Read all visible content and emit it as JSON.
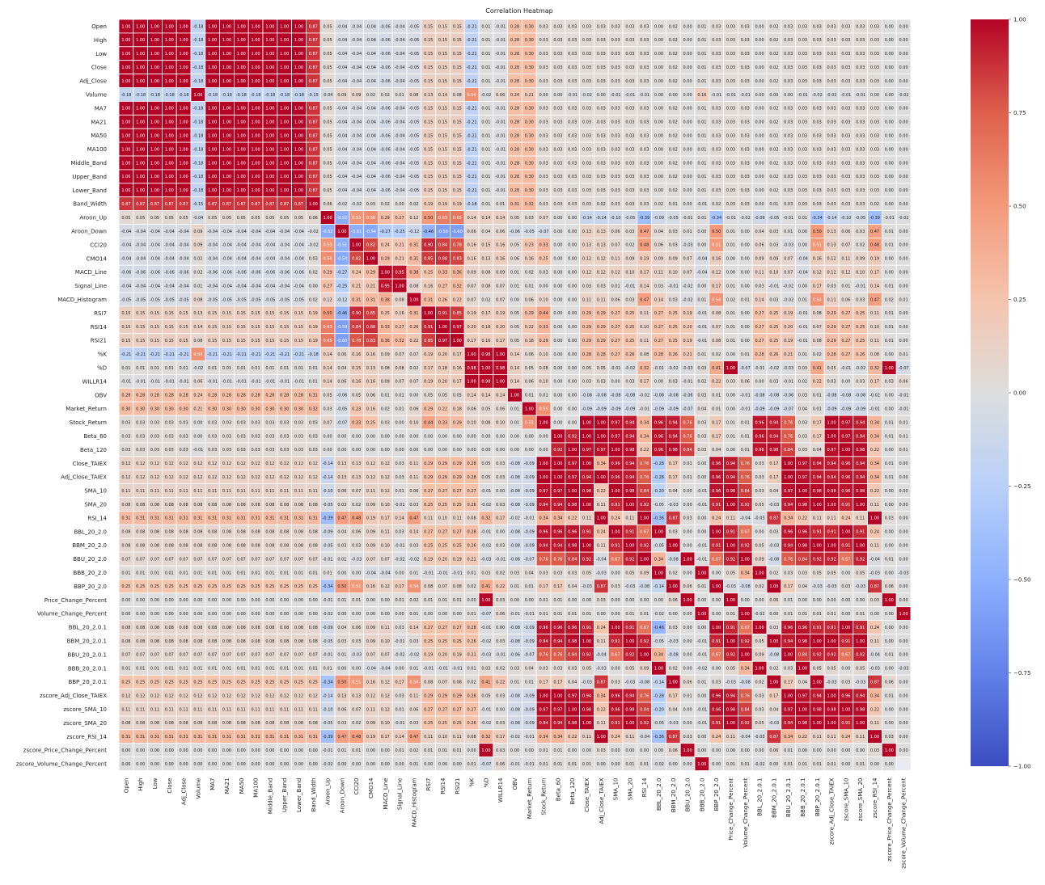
{
  "chart_data": {
    "type": "heatmap",
    "title": "Correlation Heatmap",
    "labels": [
      "Open",
      "High",
      "Low",
      "Close",
      "Adj_Close",
      "Volume",
      "MA7",
      "MA21",
      "MA50",
      "MA100",
      "Middle_Band",
      "Upper_Band",
      "Lower_Band",
      "Band_Width",
      "Aroon_Up",
      "Aroon_Down",
      "CCI20",
      "CMO14",
      "MACD_Line",
      "Signal_Line",
      "MACD_Histogram",
      "RSI7",
      "RSI14",
      "RSI21",
      "%K",
      "%D",
      "WILLR14",
      "OBV",
      "Market_Return",
      "Stock_Return",
      "Beta_60",
      "Beta_120",
      "Close_TAIEX",
      "Adj_Close_TAIEX",
      "SMA_10",
      "SMA_20",
      "RSI_14",
      "BBL_20_2.0",
      "BBM_20_2.0",
      "BBU_20_2.0",
      "BBB_20_2.0",
      "BBP_20_2.0",
      "Price_Change_Percent",
      "Volume_Change_Percent",
      "BBL_20_2.0.1",
      "BBM_20_2.0.1",
      "BBU_20_2.0.1",
      "BBB_20_2.0.1",
      "BBP_20_2.0.1",
      "zscore_Adj_Close_TAIEX",
      "zscore_SMA_10",
      "zscore_SMA_20",
      "zscore_RSI_14",
      "zscore_Price_Change_Percent",
      "zscore_Volume_Change_Percent"
    ],
    "group_rows": {
      "price": [
        0.03,
        0.05,
        -0.04,
        -0.04,
        -0.04,
        -0.06,
        -0.04,
        -0.05,
        0.15,
        0.15,
        0.15,
        -0.21,
        0.01,
        -0.01,
        0.28,
        0.3,
        0.03,
        0.03,
        0.03,
        0.03,
        0.03,
        0.03,
        0.03,
        0.03,
        0.0,
        0.02,
        0.0,
        0.01,
        0.03,
        0.03,
        0.03,
        0.0,
        0.02,
        0.03,
        0.03,
        0.03,
        0.03,
        -0.0,
        -0.0
      ],
      "volume": [
        0.12,
        -0.04,
        0.09,
        0.09,
        0.02,
        0.02,
        0.01,
        0.08,
        0.13,
        0.14,
        0.08,
        0.54,
        -0.02,
        0.06,
        0.24,
        0.21,
        -0.0,
        -0.0,
        -0.01,
        -0.02,
        0.0,
        -0.01,
        -0.01,
        -0.01,
        0.0,
        -0.0,
        0.0,
        0.16,
        -0.01,
        -0.01,
        -0.01,
        -0.0,
        -0.0,
        -0.0,
        -0.01,
        -0.02,
        0.0,
        -0.0,
        -0.02
      ],
      "band_width": [
        0.01,
        0.06,
        -0.02,
        -0.02,
        0.03,
        0.02,
        0.0,
        0.02,
        0.19,
        0.19,
        0.19,
        -0.18,
        0.01,
        0.01,
        0.31,
        0.32,
        0.03,
        0.03,
        0.03,
        0.03,
        0.02,
        0.03,
        0.03,
        0.03,
        0.02,
        0.01,
        0.0,
        -0.01,
        0.02,
        0.03,
        0.03,
        0.0,
        0.01,
        0.03,
        0.03,
        0.03,
        0.02,
        -0.0,
        -0.0
      ],
      "taiex": [
        0.12,
        -0.14,
        0.13,
        0.13,
        0.12,
        0.12,
        0.03,
        0.11,
        0.29,
        0.29,
        0.29,
        0.28,
        0.05,
        0.03,
        -0.08,
        -0.09,
        1.0,
        1.0,
        0.97,
        0.94,
        0.34,
        0.96,
        0.94,
        0.76,
        -0.28,
        0.17,
        0.01,
        0.0,
        0.96,
        0.94,
        0.76,
        0.03,
        0.17,
        1.0,
        0.97,
        0.94,
        0.34,
        0.01,
        -0.0
      ],
      "sma10": [
        0.11,
        -0.1,
        0.06,
        0.07,
        0.11,
        0.12,
        0.01,
        0.06,
        0.27,
        0.27,
        0.27,
        0.27,
        -0.01,
        0.0,
        -0.08,
        -0.09,
        0.97,
        0.97,
        1.0,
        0.98,
        0.22,
        0.96,
        0.98,
        0.84,
        -0.2,
        0.04,
        0.0,
        -0.01,
        0.96,
        0.98,
        0.84,
        0.03,
        0.04,
        0.97,
        1.0,
        0.98,
        0.22,
        0.0,
        -0.0
      ],
      "sma20": [
        0.08,
        -0.05,
        0.03,
        0.02,
        0.09,
        0.1,
        -0.01,
        0.03,
        0.25,
        0.25,
        0.25,
        0.26,
        -0.02,
        0.03,
        -0.08,
        -0.09,
        0.94,
        0.94,
        0.98,
        1.0,
        0.11,
        0.91,
        1.0,
        0.92,
        -0.05,
        -0.03,
        0.0,
        -0.01,
        0.91,
        1.0,
        0.92,
        0.05,
        -0.03,
        0.94,
        0.98,
        1.0,
        0.11,
        0.0,
        -0.0
      ],
      "rsi14": [
        0.31,
        -0.39,
        0.47,
        0.48,
        0.19,
        0.17,
        0.14,
        0.47,
        0.11,
        0.1,
        0.11,
        0.08,
        0.32,
        0.17,
        -0.02,
        -0.01,
        0.34,
        0.34,
        0.22,
        0.11,
        1.0,
        0.24,
        0.11,
        -0.04,
        -0.36,
        0.87,
        0.03,
        0.0,
        0.24,
        0.11,
        -0.04,
        -0.03,
        0.87,
        0.34,
        0.22,
        0.11,
        1.0,
        0.03,
        -0.0
      ],
      "bbl": [
        0.08,
        -0.09,
        0.04,
        0.06,
        0.09,
        0.11,
        0.03,
        0.14,
        0.27,
        0.27,
        0.27,
        0.28,
        -0.01,
        0.0,
        -0.08,
        -0.09,
        0.96,
        0.96,
        0.96,
        0.91,
        0.24,
        1.0,
        0.91,
        0.67,
        -0.46,
        0.03,
        0.0,
        -0.0,
        1.0,
        0.91,
        0.67,
        0.0,
        0.03,
        0.96,
        0.96,
        0.91,
        0.24,
        0.0,
        -0.0
      ],
      "bbm": [
        0.08,
        -0.05,
        0.03,
        0.03,
        0.09,
        0.1,
        -0.01,
        0.03,
        0.25,
        0.25,
        0.25,
        0.26,
        -0.02,
        0.03,
        -0.08,
        -0.09,
        0.94,
        0.94,
        0.98,
        1.0,
        0.11,
        0.91,
        1.0,
        0.92,
        -0.05,
        -0.03,
        0.0,
        -0.01,
        0.91,
        1.0,
        0.92,
        0.05,
        -0.03,
        0.94,
        0.98,
        1.0,
        0.11,
        0.0,
        -0.0
      ],
      "bbu": [
        0.07,
        -0.01,
        0.01,
        -0.03,
        0.07,
        0.07,
        -0.02,
        -0.02,
        0.19,
        0.2,
        0.19,
        0.21,
        -0.03,
        -0.01,
        -0.06,
        -0.07,
        0.76,
        0.76,
        0.84,
        0.92,
        -0.04,
        0.67,
        0.92,
        1.0,
        0.34,
        -0.08,
        0.0,
        -0.01,
        0.67,
        0.92,
        1.0,
        0.09,
        -0.08,
        0.76,
        0.84,
        0.92,
        -0.04,
        0.01,
        -0.0
      ],
      "bbb": [
        0.01,
        0.01,
        0.0,
        0.0,
        -0.04,
        -0.04,
        0.0,
        0.01,
        -0.01,
        -0.01,
        -0.01,
        0.01,
        0.03,
        0.02,
        0.03,
        0.04,
        0.03,
        0.03,
        0.03,
        0.05,
        -0.03,
        0.0,
        0.05,
        0.09,
        1.0,
        0.02,
        0.0,
        -0.02,
        0.0,
        0.05,
        0.34,
        1.0,
        0.02,
        0.03,
        0.03,
        0.05,
        -0.03,
        0.0,
        -0.03
      ],
      "bbp": [
        0.25,
        -0.34,
        0.5,
        0.51,
        0.16,
        0.12,
        0.17,
        0.54,
        0.08,
        0.07,
        0.08,
        0.02,
        0.41,
        0.22,
        0.01,
        0.01,
        0.17,
        0.17,
        0.04,
        -0.03,
        0.87,
        0.03,
        -0.03,
        -0.08,
        -0.14,
        1.0,
        0.06,
        0.01,
        0.03,
        -0.03,
        -0.08,
        0.02,
        1.0,
        0.17,
        0.04,
        -0.03,
        0.87,
        0.06,
        -0.0
      ],
      "price_change": [
        0.0,
        -0.01,
        0.01,
        0.01,
        0.0,
        0.0,
        0.01,
        0.02,
        0.01,
        0.01,
        0.01,
        0.0,
        1.0,
        0.03,
        0.0,
        0.0,
        0.01,
        0.01,
        0.0,
        0.0,
        0.03,
        0.0,
        0.0,
        0.0,
        0.0,
        0.06,
        1.0,
        -0.0,
        0.0,
        0.0,
        0.0,
        0.0,
        0.06,
        0.01,
        0.0,
        0.0,
        0.03,
        1.0,
        0.0
      ],
      "volume_change": [
        0.0,
        -0.02,
        0.0,
        0.0,
        0.0,
        0.0,
        0.0,
        0.01,
        0.0,
        0.0,
        0.0,
        0.01,
        -0.07,
        0.06,
        -0.01,
        -0.01,
        0.01,
        0.01,
        0.01,
        0.01,
        0.0,
        0.0,
        0.01,
        0.01,
        -0.02,
        -0.0,
        -0.0,
        1.0,
        0.0,
        0.01,
        0.01,
        -0.02,
        0.0,
        0.01,
        0.01,
        0.01,
        0.0,
        -0.0,
        1.0
      ]
    },
    "momentum_block": [
      [
        1.0,
        -0.52,
        0.53,
        0.56,
        0.29,
        0.27,
        0.12,
        0.5,
        0.63,
        0.65,
        0.14,
        0.14,
        0.14,
        0.05,
        0.03,
        0.07
      ],
      [
        -0.52,
        1.0,
        -0.51,
        -0.54,
        -0.27,
        -0.25,
        -0.12,
        -0.46,
        -0.59,
        -0.6,
        0.06,
        0.04,
        0.06,
        -0.06,
        -0.05,
        -0.07
      ],
      [
        0.53,
        -0.51,
        1.0,
        0.82,
        0.24,
        0.21,
        0.31,
        0.9,
        0.84,
        0.78,
        0.16,
        0.15,
        0.16,
        0.05,
        0.23,
        0.33
      ],
      [
        0.56,
        -0.54,
        0.82,
        1.0,
        0.29,
        0.21,
        0.31,
        0.85,
        0.88,
        0.83,
        0.16,
        0.13,
        0.16,
        0.06,
        0.16,
        0.25
      ],
      [
        0.29,
        -0.27,
        0.24,
        0.29,
        1.0,
        0.95,
        0.38,
        0.25,
        0.33,
        0.36,
        0.09,
        0.08,
        0.09,
        0.01,
        0.02,
        0.03
      ],
      [
        0.27,
        -0.25,
        0.21,
        0.21,
        0.95,
        1.0,
        0.08,
        0.16,
        0.27,
        0.32,
        0.07,
        0.08,
        0.07,
        0.01,
        0.01,
        0.0
      ],
      [
        0.12,
        -0.12,
        0.31,
        0.31,
        0.38,
        0.08,
        1.0,
        0.31,
        0.26,
        0.22,
        0.07,
        0.02,
        0.07,
        0.0,
        0.06,
        0.1
      ],
      [
        0.5,
        -0.46,
        0.9,
        0.85,
        0.25,
        0.16,
        0.31,
        1.0,
        0.91,
        0.85,
        0.19,
        0.17,
        0.19,
        0.05,
        0.29,
        0.44
      ],
      [
        0.63,
        -0.59,
        0.84,
        0.88,
        0.33,
        0.27,
        0.26,
        0.91,
        1.0,
        0.97,
        0.2,
        0.18,
        0.2,
        0.05,
        0.22,
        0.33
      ],
      [
        0.65,
        -0.6,
        0.78,
        0.83,
        0.36,
        0.32,
        0.22,
        0.85,
        0.97,
        1.0,
        0.17,
        0.16,
        0.17,
        0.05,
        0.18,
        0.29
      ],
      [
        0.14,
        0.06,
        0.16,
        0.16,
        0.09,
        0.07,
        0.07,
        0.19,
        0.2,
        0.17,
        1.0,
        0.98,
        1.0,
        0.14,
        0.06,
        0.1
      ],
      [
        0.14,
        0.04,
        0.15,
        0.13,
        0.08,
        0.08,
        0.02,
        0.17,
        0.18,
        0.16,
        0.98,
        1.0,
        0.98,
        0.14,
        0.05,
        0.08
      ],
      [
        0.14,
        0.06,
        0.16,
        0.16,
        0.09,
        0.07,
        0.07,
        0.19,
        0.2,
        0.17,
        1.0,
        0.98,
        1.0,
        0.14,
        0.06,
        0.1
      ],
      [
        0.05,
        -0.06,
        0.05,
        0.06,
        0.01,
        0.01,
        0.0,
        0.05,
        0.05,
        0.05,
        0.14,
        0.14,
        0.14,
        1.0,
        0.01,
        0.01
      ],
      [
        0.03,
        -0.05,
        0.23,
        0.16,
        0.02,
        0.01,
        0.06,
        0.29,
        0.22,
        0.18,
        0.06,
        0.05,
        0.06,
        0.01,
        1.0,
        0.55
      ],
      [
        0.07,
        -0.07,
        0.33,
        0.25,
        0.03,
        0.0,
        0.1,
        0.44,
        0.33,
        0.29,
        0.1,
        0.08,
        0.1,
        0.01,
        0.55,
        1.0
      ]
    ],
    "beta_block": [
      [
        1.0,
        0.92
      ],
      [
        0.92,
        1.0
      ]
    ],
    "vmin": -1.0,
    "vmax": 1.0,
    "colorbar_ticks": [
      "-1.00",
      "-0.75",
      "-0.50",
      "-0.25",
      "0.00",
      "0.25",
      "0.50",
      "0.75",
      "1.00"
    ],
    "colormap": "coolwarm",
    "color_low": "#3b4cc0",
    "color_mid": "#dddddd",
    "color_high": "#b40426",
    "annotation_format": "2 decimals"
  }
}
